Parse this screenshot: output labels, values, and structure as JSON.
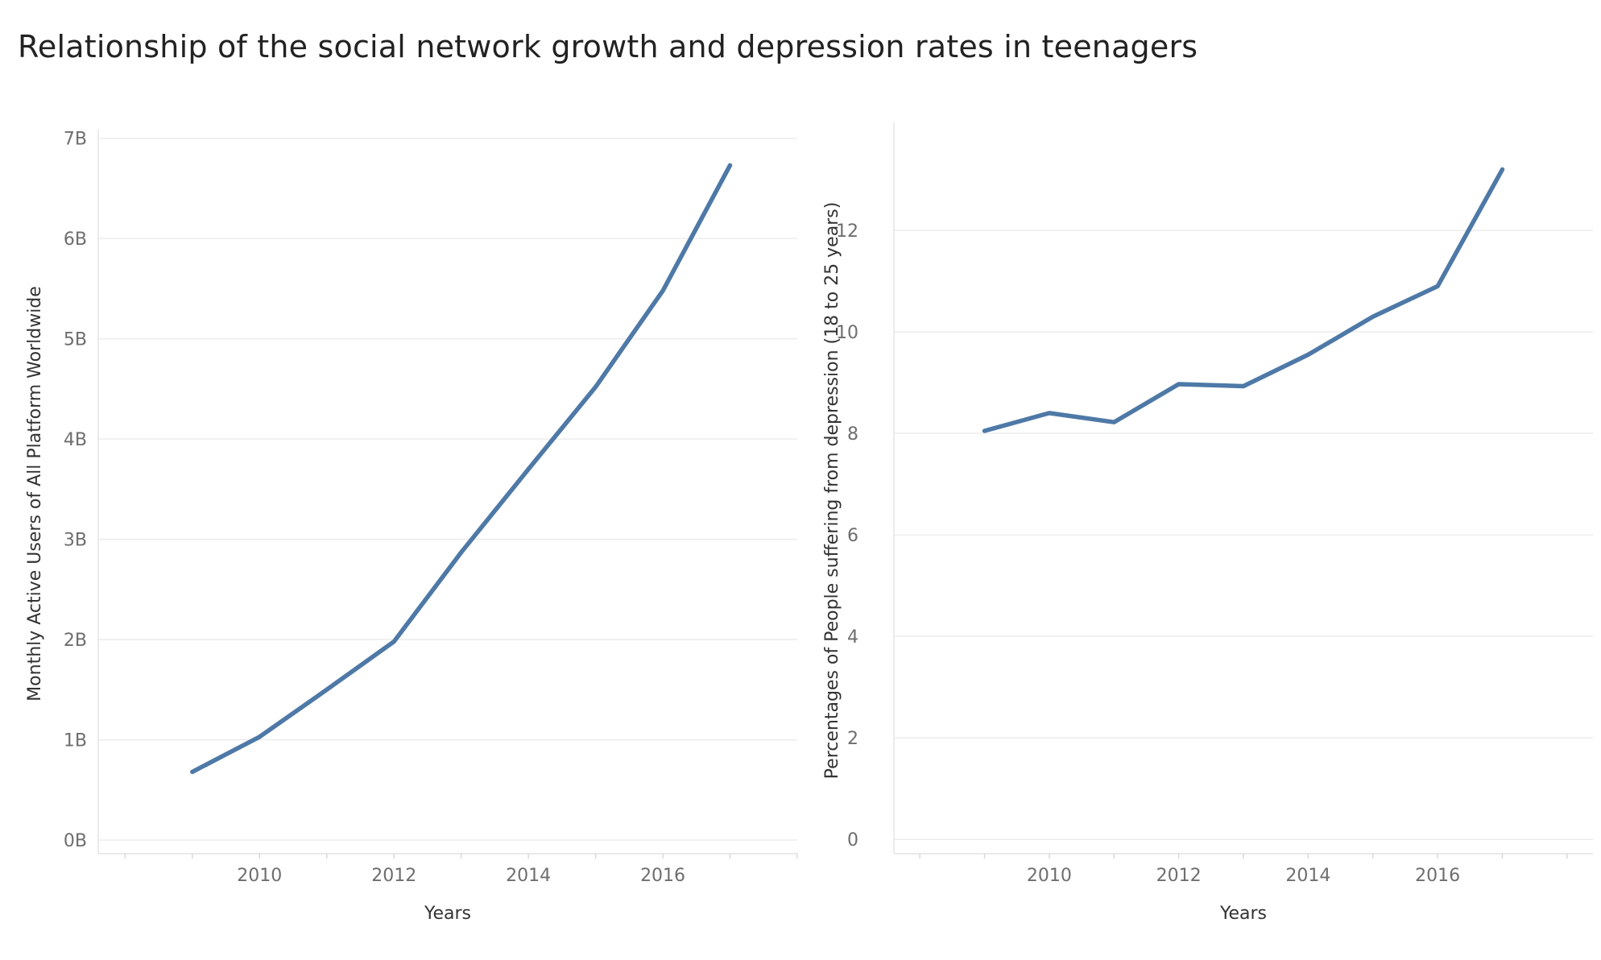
{
  "title": "Relationship of the social network growth and depression rates in teenagers",
  "colors": {
    "line": "#4e79a7",
    "grid": "#ebebeb",
    "tick_text": "#6e6e6e",
    "title_text": "#222222"
  },
  "chart_data": [
    {
      "type": "line",
      "xlabel": "Years",
      "ylabel": "Monthly Active Users of All Platform Worldwide",
      "x": [
        2009,
        2010,
        2011,
        2012,
        2013,
        2014,
        2015,
        2016,
        2017
      ],
      "values": [
        0.68,
        1.03,
        1.5,
        1.98,
        2.87,
        3.7,
        4.52,
        5.48,
        6.73
      ],
      "xlim": [
        2007.6,
        2018.0
      ],
      "ylim": [
        -0.12,
        7.03
      ],
      "y_ticks": [
        0,
        1,
        2,
        3,
        4,
        5,
        6,
        7
      ],
      "y_tick_labels": [
        "0B",
        "1B",
        "2B",
        "3B",
        "4B",
        "5B",
        "6B",
        "7B"
      ],
      "x_ticks": [
        2010,
        2012,
        2014,
        2016
      ],
      "x_tick_labels": [
        "2010",
        "2012",
        "2014",
        "2016"
      ],
      "grid": true
    },
    {
      "type": "line",
      "xlabel": "Years",
      "ylabel": "Percentages of People suffering from depression (18 to 25 years)",
      "x": [
        2009,
        2010,
        2011,
        2012,
        2013,
        2014,
        2015,
        2016,
        2017
      ],
      "values": [
        8.05,
        8.4,
        8.22,
        8.97,
        8.93,
        9.55,
        10.3,
        10.9,
        13.2
      ],
      "xlim": [
        2007.6,
        2018.4
      ],
      "ylim": [
        -0.25,
        14.0
      ],
      "y_ticks": [
        0,
        2,
        4,
        6,
        8,
        10,
        12
      ],
      "y_tick_labels": [
        "0",
        "2",
        "4",
        "6",
        "8",
        "10",
        "12"
      ],
      "x_ticks": [
        2010,
        2012,
        2014,
        2016
      ],
      "x_tick_labels": [
        "2010",
        "2012",
        "2014",
        "2016"
      ],
      "grid": true
    }
  ]
}
